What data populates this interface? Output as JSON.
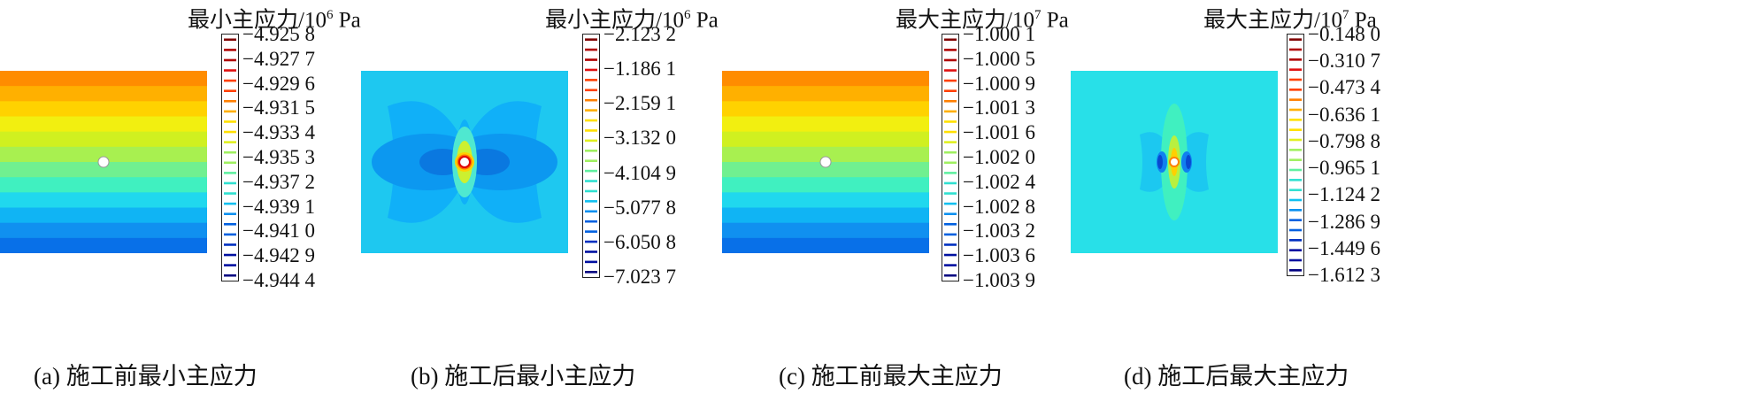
{
  "figure": {
    "panels": [
      {
        "id": "a",
        "title_main": "最小主应力/10",
        "title_exp": "6",
        "title_unit": " Pa",
        "caption": "(a)  施工前最小主应力",
        "legend_values": [
          "−4.925 8",
          "−4.927 7",
          "−4.929 6",
          "−4.931 5",
          "−4.933 4",
          "−4.935 3",
          "−4.937 2",
          "−4.939 1",
          "−4.941 0",
          "−4.942 9",
          "−4.944 4"
        ],
        "colors": [
          "#ff8c00",
          "#ffb000",
          "#ffd200",
          "#f2ef10",
          "#d0f020",
          "#a8f050",
          "#70f090",
          "#40f0c0",
          "#20d8ee",
          "#10b4f4",
          "#1090f0",
          "#0870e8"
        ]
      },
      {
        "id": "b",
        "title_main": "最小主应力/10",
        "title_exp": "6",
        "title_unit": " Pa",
        "caption": "(b)  施工后最小主应力",
        "legend_values": [
          "−2.123 2",
          "−1.186 1",
          "−2.159 1",
          "−3.132 0",
          "−4.104 9",
          "−5.077 8",
          "−6.050 8",
          "−7.023 7"
        ],
        "colors": [
          "#1ec8f0",
          "#10b0f8",
          "#0c98f0",
          "#0a78e0",
          "#4fe8d0",
          "#ccf030",
          "#ffd000",
          "#ff7000",
          "#e00000"
        ]
      },
      {
        "id": "c",
        "title_main": "最大主应力/10",
        "title_exp": "7",
        "title_unit": " Pa",
        "caption": "(c)  施工前最大主应力",
        "legend_values": [
          "−1.000 1",
          "−1.000 5",
          "−1.000 9",
          "−1.001 3",
          "−1.001 6",
          "−1.002 0",
          "−1.002 4",
          "−1.002 8",
          "−1.003 2",
          "−1.003 6",
          "−1.003 9"
        ],
        "colors": [
          "#ff8c00",
          "#ffb000",
          "#ffd200",
          "#f2ef10",
          "#d0f020",
          "#a8f050",
          "#70f090",
          "#40f0c0",
          "#20d8ee",
          "#10b4f4",
          "#1090f0",
          "#0870e8"
        ]
      },
      {
        "id": "d",
        "title_main": "最大主应力/10",
        "title_exp": "7",
        "title_unit": " Pa",
        "caption": "(d)  施工后最大主应力",
        "legend_values": [
          "−0.148 0",
          "−0.310 7",
          "−0.473 4",
          "−0.636 1",
          "−0.798 8",
          "−0.965 1",
          "−1.124 2",
          "−1.286 9",
          "−1.449 6",
          "−1.612 3"
        ],
        "colors": [
          "#28e0e8",
          "#1cc8f0",
          "#40f0c0",
          "#b8f040",
          "#ffd000",
          "#ff8000",
          "#1080f0",
          "#0848d0"
        ]
      }
    ],
    "colorbar_palette": [
      "#800000",
      "#b00000",
      "#e01010",
      "#ff4000",
      "#ff8000",
      "#ffb000",
      "#ffe000",
      "#e0f020",
      "#a0f060",
      "#60f0a0",
      "#30e0d0",
      "#10c0f0",
      "#0890f0",
      "#0060e0",
      "#0030c0",
      "#0010a0",
      "#000080"
    ]
  }
}
